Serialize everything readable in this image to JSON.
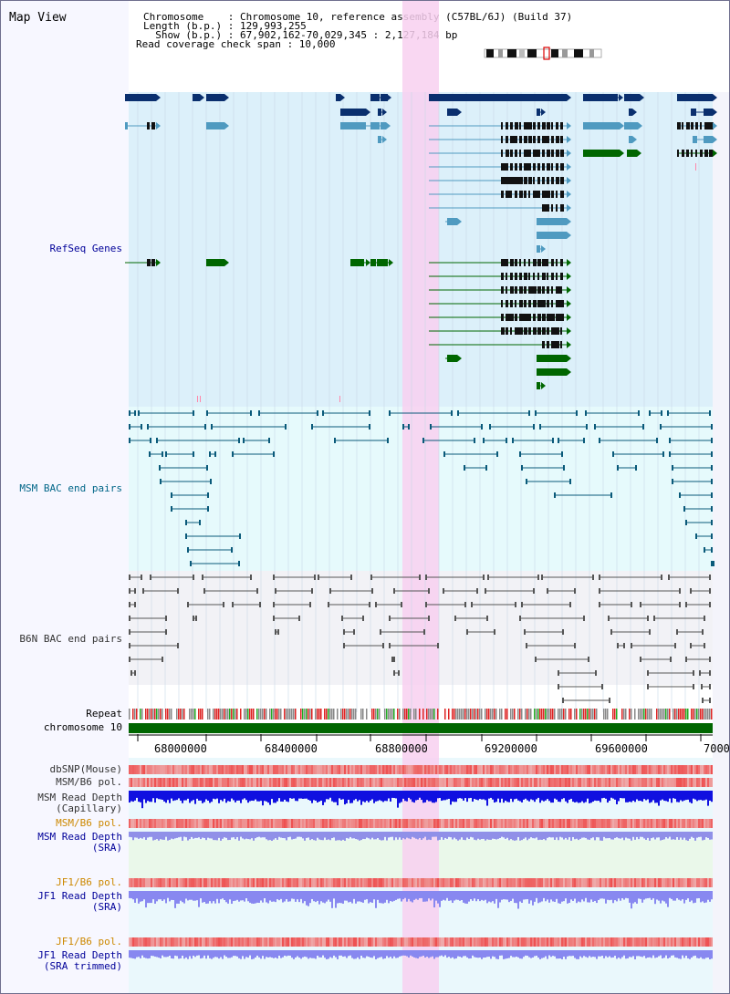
{
  "header": {
    "title": "Map View",
    "lines": [
      "Chromosome    : Chromosome 10, reference assembly (C57BL/6J) (Build 37)",
      "Length (b.p.) : 129,993,255",
      "  Show (b.p.) : 67,902,162-70,029,345 : 2,127,184 bp",
      "Read coverage check span : 10,000"
    ]
  },
  "tracks": {
    "refseq": "RefSeq Genes",
    "msm_bac": "MSM BAC end pairs",
    "b6n_bac": "B6N BAC end pairs",
    "repeat": "Repeat",
    "chromosome": "chromosome 10",
    "dbsnp": "dbSNP(Mouse)",
    "msm_pol": "MSM/B6 pol.",
    "msm_depth_cap_1": "MSM Read Depth",
    "msm_depth_cap_2": "(Capillary)",
    "msm_pol_sra": "MSM/B6 pol.",
    "msm_depth_sra_1": "MSM Read Depth",
    "msm_depth_sra_2": "(SRA)",
    "jf1_pol": "JF1/B6 pol.",
    "jf1_depth_1": "JF1 Read Depth",
    "jf1_depth_2": "(SRA)",
    "jf1_pol_tr": "JF1/B6 pol.",
    "jf1_depth_tr_1": "JF1 Read Depth",
    "jf1_depth_tr_2": "(SRA trimmed)"
  },
  "axis": {
    "ticks": [
      "68000000",
      "68400000",
      "68800000",
      "69200000",
      "69600000",
      "7000"
    ]
  },
  "colors": {
    "label_blue": "#000099",
    "label_msm": "#006688",
    "label_b6n": "#333333",
    "label_orange": "#cc8800",
    "highlight": "#f8d0f0",
    "refseq_bg": "#dcf0fa",
    "msm_bg": "#e6fafc",
    "b6n_bg": "#f2f2f6",
    "gene_dark": "#0a2f6e",
    "gene_mid": "#4f9ac0",
    "gene_green": "#006600",
    "chrom": "#006600",
    "depth_blue": "#1010e0",
    "depth_light": "#8888f0",
    "pol_red": "#ee3333"
  }
}
